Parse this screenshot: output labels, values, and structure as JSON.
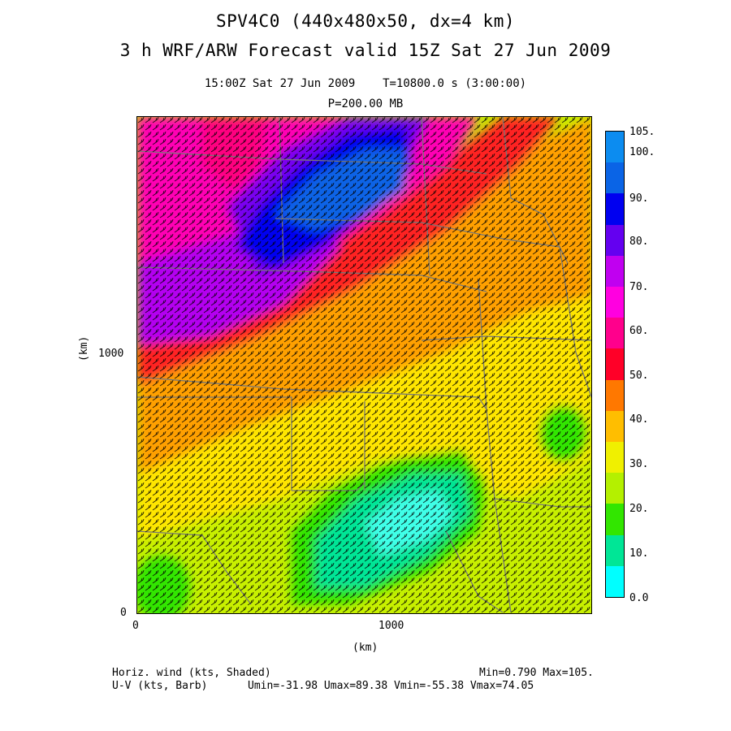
{
  "header": {
    "line1": "SPV4C0 (440x480x50, dx=4 km)",
    "line2": "3 h WRF/ARW Forecast valid 15Z Sat 27 Jun 2009",
    "time_line": "15:00Z Sat 27 Jun 2009    T=10800.0 s (3:00:00)",
    "level": "P=200.00 MB"
  },
  "axes": {
    "x_ticks": [
      "0",
      "1000"
    ],
    "y_ticks": [
      "0",
      "1000"
    ],
    "x_label": "(km)",
    "y_label": "(km)"
  },
  "legend": {
    "labels": [
      "105.",
      "100.",
      "90.",
      "80.",
      "70.",
      "60.",
      "50.",
      "40.",
      "30.",
      "20.",
      "10.",
      "0.0"
    ],
    "colors": [
      "#0c8cf0",
      "#0a64e6",
      "#0000f0",
      "#6400f0",
      "#c000f0",
      "#ff00e0",
      "#ff008c",
      "#ff0028",
      "#ff7800",
      "#ffbe00",
      "#f0f000",
      "#b4f000",
      "#32e600",
      "#00e696",
      "#00ffff"
    ]
  },
  "footer": {
    "left1": "Horiz. wind (kts, Shaded)",
    "left2": "U-V (kts, Barb)",
    "right1": "Min=0.790 Max=105.",
    "right2": "Umin=-31.98 Umax=89.38 Vmin=-55.38 Vmax=74.05"
  }
}
